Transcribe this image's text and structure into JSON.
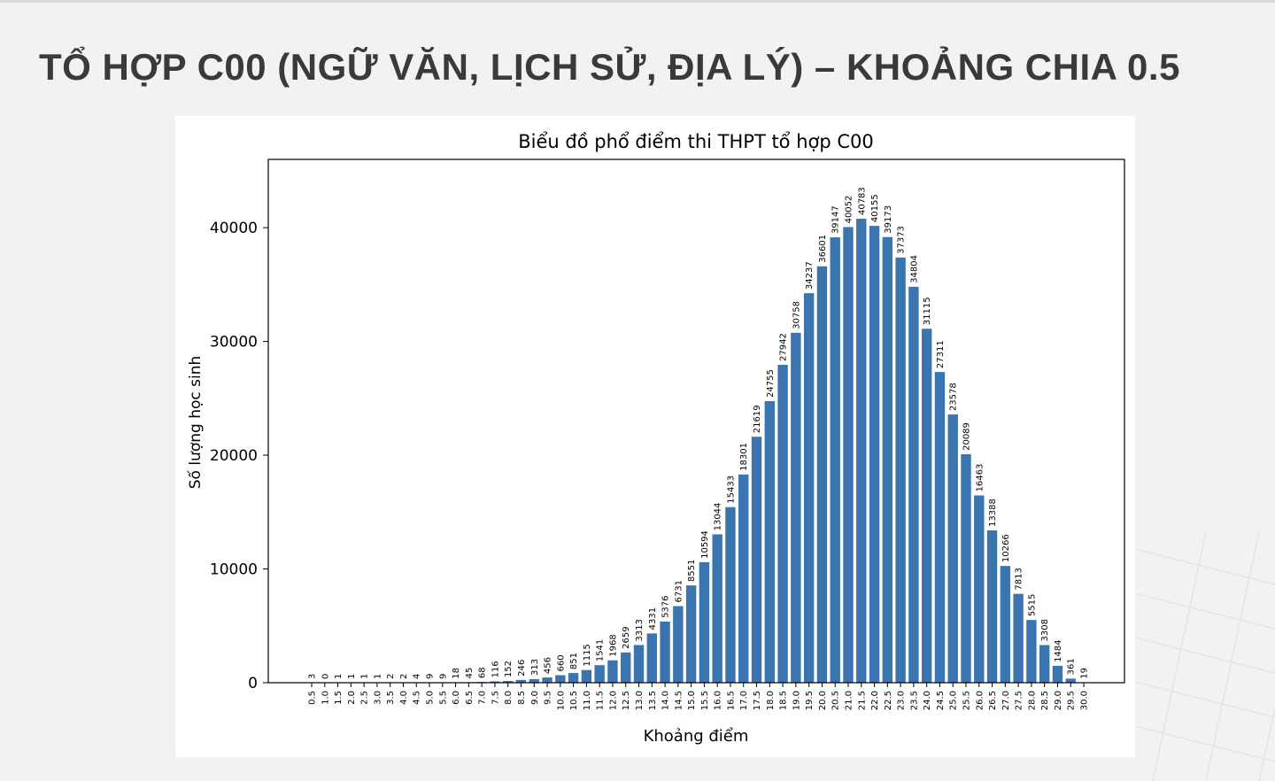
{
  "page": {
    "title": "TỔ HỢP C00 (NGỮ VĂN, LỊCH SỬ, ĐỊA LÝ) – KHOẢNG CHIA 0.5"
  },
  "chart_data": {
    "type": "bar",
    "title": "Biểu đồ phổ điểm thi THPT tổ hợp C00",
    "xlabel": "Khoảng điểm",
    "ylabel": "Số lượng học sinh",
    "ylim": [
      0,
      46000
    ],
    "yticks": [
      0,
      10000,
      20000,
      30000,
      40000
    ],
    "bar_color": "#3b75af",
    "categories": [
      "0.5",
      "1.0",
      "1.5",
      "2.0",
      "2.5",
      "3.0",
      "3.5",
      "4.0",
      "4.5",
      "5.0",
      "5.5",
      "6.0",
      "6.5",
      "7.0",
      "7.5",
      "8.0",
      "8.5",
      "9.0",
      "9.5",
      "10.0",
      "10.5",
      "11.0",
      "11.5",
      "12.0",
      "12.5",
      "13.0",
      "13.5",
      "14.0",
      "14.5",
      "15.0",
      "15.5",
      "16.0",
      "16.5",
      "17.0",
      "17.5",
      "18.0",
      "18.5",
      "19.0",
      "19.5",
      "20.0",
      "20.5",
      "21.0",
      "21.5",
      "22.0",
      "22.5",
      "23.0",
      "23.5",
      "24.0",
      "24.5",
      "25.0",
      "25.5",
      "26.0",
      "26.5",
      "27.0",
      "27.5",
      "28.0",
      "28.5",
      "29.0",
      "29.5",
      "30.0"
    ],
    "values": [
      3,
      0,
      1,
      1,
      1,
      1,
      2,
      2,
      4,
      9,
      9,
      18,
      45,
      68,
      116,
      152,
      246,
      313,
      456,
      660,
      851,
      1115,
      1541,
      1968,
      2659,
      3313,
      4331,
      5376,
      6731,
      8551,
      10594,
      13044,
      15433,
      18301,
      21619,
      24755,
      27942,
      30758,
      34237,
      36601,
      39147,
      40052,
      40783,
      40155,
      39173,
      37373,
      34804,
      31115,
      27311,
      23578,
      20089,
      16463,
      13388,
      10266,
      7813,
      5515,
      3308,
      1484,
      361,
      19
    ]
  }
}
